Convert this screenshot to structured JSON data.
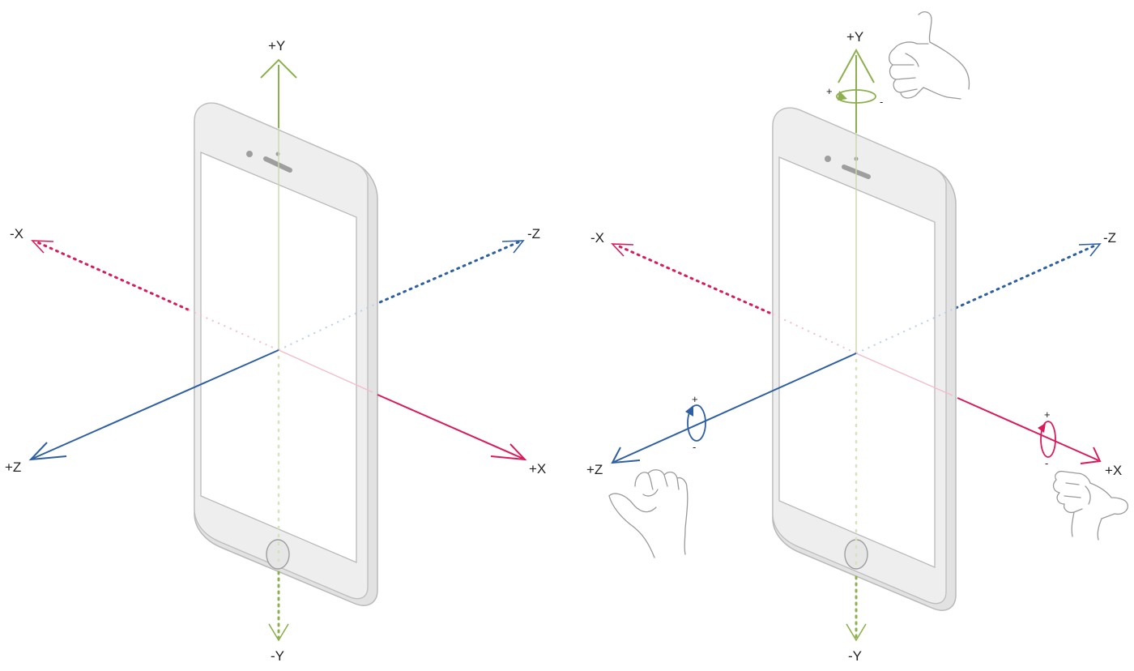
{
  "colors": {
    "y_axis": "#8db04e",
    "x_axis": "#d81b5a",
    "z_axis": "#2f5fa3",
    "device_body": "#eeeeee",
    "device_outline": "#b9b9b9",
    "hand_outline": "#9a9a9a",
    "label_text": "#222222"
  },
  "left_diagram": {
    "labels": {
      "pos_y": "+Y",
      "neg_y": "-Y",
      "pos_x": "+X",
      "neg_x": "-X",
      "pos_z": "+Z",
      "neg_z": "-Z"
    }
  },
  "right_diagram": {
    "labels": {
      "pos_y": "+Y",
      "neg_y": "-Y",
      "pos_x": "+X",
      "neg_x": "-X",
      "pos_z": "+Z",
      "neg_z": "-Z"
    },
    "rotation_signs": {
      "y_plus": "+",
      "y_minus": "-",
      "x_plus": "+",
      "x_minus": "-",
      "z_plus": "+",
      "z_minus": "-"
    },
    "icons": [
      "hand-right-y-icon",
      "hand-right-z-icon",
      "hand-right-x-icon"
    ]
  }
}
